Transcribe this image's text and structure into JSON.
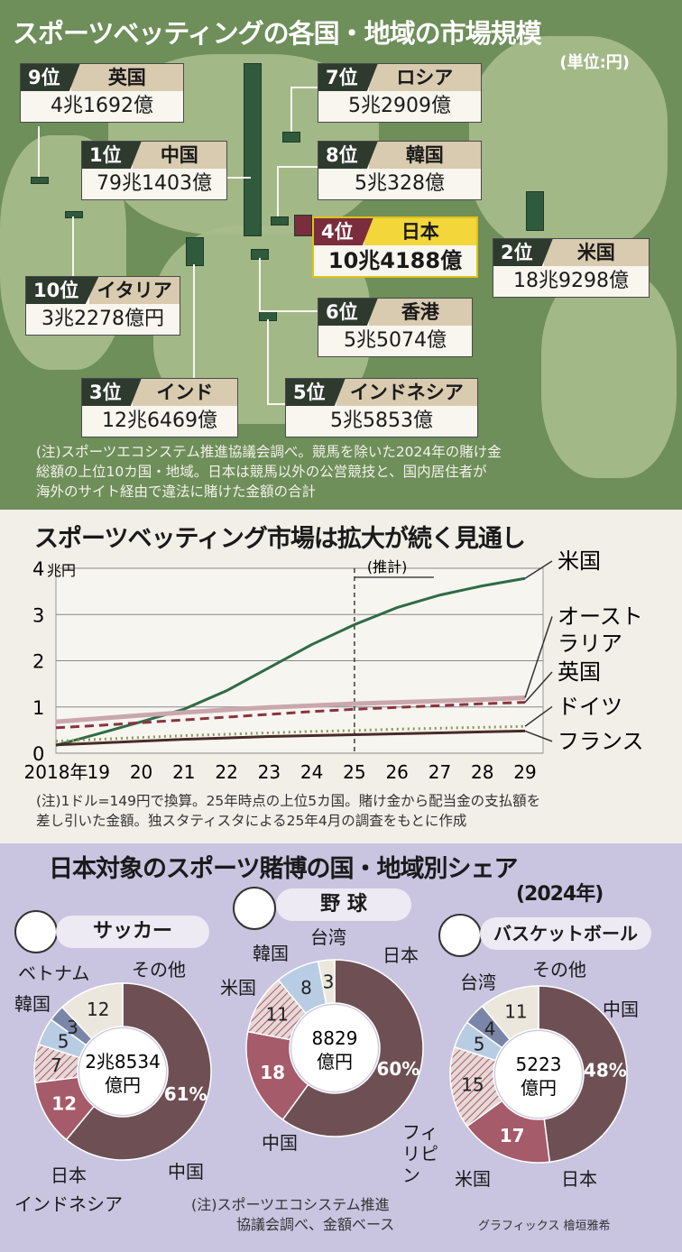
{
  "map": {
    "title": "スポーツベッティングの各国・地域の市場規模",
    "unit": "(単位:円)",
    "entries": [
      {
        "rank": "9位",
        "country": "英国",
        "value": "4兆1692億"
      },
      {
        "rank": "7位",
        "country": "ロシア",
        "value": "5兆2909億"
      },
      {
        "rank": "1位",
        "country": "中国",
        "value": "79兆1403億"
      },
      {
        "rank": "8位",
        "country": "韓国",
        "value": "5兆328億"
      },
      {
        "rank": "4位",
        "country": "日本",
        "value": "10兆4188億"
      },
      {
        "rank": "2位",
        "country": "米国",
        "value": "18兆9298億"
      },
      {
        "rank": "10位",
        "country": "イタリア",
        "value": "3兆2278億円"
      },
      {
        "rank": "6位",
        "country": "香港",
        "value": "5兆5074億"
      },
      {
        "rank": "3位",
        "country": "インド",
        "value": "12兆6469億"
      },
      {
        "rank": "5位",
        "country": "インドネシア",
        "value": "5兆5853億"
      }
    ],
    "note_lines": [
      "(注)スポーツエコシステム推進協議会調べ。競馬を除いた2024年の賭け金",
      "総額の上位10カ国・地域。日本は競馬以外の公営競技と、国内居住者が",
      "海外のサイト経由で違法に賭けた金額の合計"
    ]
  },
  "line": {
    "title": "スポーツベッティング市場は拡大が続く見通し",
    "note_lines": [
      "(注)1ドル=149円で換算。25年時点の上位5カ国。賭け金から配当金の支払額を",
      "差し引いた金額。独スタティスタによる25年4月の調査をもとに作成"
    ]
  },
  "donut": {
    "title": "日本対象のスポーツ賭博の国・地域別シェア",
    "year": "(2024年)",
    "note_lines": [
      "(注)スポーツエコシステム推進",
      "協議会調べ、金額ベース"
    ],
    "credit": "グラフィックス 檜垣雅希"
  },
  "chart_data": [
    {
      "type": "line",
      "title": "スポーツベッティング市場は拡大が続く見通し",
      "ylabel": "兆円",
      "ylim": [
        0,
        4
      ],
      "yticks": [
        "0",
        "1",
        "2",
        "3",
        "4"
      ],
      "x": [
        "2018年",
        "19",
        "20",
        "21",
        "22",
        "23",
        "24",
        "25",
        "26",
        "27",
        "28",
        "29"
      ],
      "annotation": "(推計)",
      "forecast_from": "25",
      "grid": true,
      "series": [
        {
          "name": "米国",
          "color": "#2f6b45",
          "style": "solid",
          "values": [
            0.17,
            0.42,
            0.68,
            0.95,
            1.35,
            1.85,
            2.35,
            2.78,
            3.15,
            3.42,
            3.62,
            3.78
          ]
        },
        {
          "name": "オーストラリア",
          "color": "#c9a7ad",
          "style": "solid",
          "values": [
            0.68,
            0.75,
            0.82,
            0.88,
            0.94,
            0.99,
            1.03,
            1.07,
            1.1,
            1.13,
            1.16,
            1.2
          ]
        },
        {
          "name": "英国",
          "color": "#8a3340",
          "style": "dashed",
          "values": [
            0.55,
            0.6,
            0.66,
            0.72,
            0.78,
            0.84,
            0.9,
            0.95,
            0.99,
            1.03,
            1.07,
            1.1
          ]
        },
        {
          "name": "ドイツ",
          "color": "#8a9a56",
          "style": "dotted",
          "values": [
            0.26,
            0.3,
            0.34,
            0.38,
            0.41,
            0.44,
            0.47,
            0.49,
            0.52,
            0.54,
            0.56,
            0.58
          ]
        },
        {
          "name": "フランス",
          "color": "#4a2a2a",
          "style": "solid",
          "values": [
            0.18,
            0.22,
            0.26,
            0.3,
            0.33,
            0.36,
            0.38,
            0.4,
            0.42,
            0.44,
            0.46,
            0.48
          ]
        }
      ]
    },
    {
      "type": "pie",
      "title": "サッカー",
      "center": [
        "2兆8534",
        "億円"
      ],
      "slices": [
        {
          "label": "中国",
          "value": 61,
          "text": "61%",
          "color": "#6e5054"
        },
        {
          "label": "日本",
          "value": 12,
          "text": "12",
          "color": "#a55b69"
        },
        {
          "label": "インドネシア",
          "value": 7,
          "text": "7",
          "color": "#d9c6c4",
          "hatch": true
        },
        {
          "label": "韓国",
          "value": 5,
          "text": "5",
          "color": "#b8cce4"
        },
        {
          "label": "ベトナム",
          "value": 3,
          "text": "3",
          "color": "#7a86a8"
        },
        {
          "label": "その他",
          "value": 12,
          "text": "12",
          "color": "#ece7dc"
        }
      ]
    },
    {
      "type": "pie",
      "title": "野 球",
      "center": [
        "8829",
        "億円"
      ],
      "slices": [
        {
          "label": "日本",
          "value": 60,
          "text": "60%",
          "color": "#6e5054"
        },
        {
          "label": "中国",
          "value": 18,
          "text": "18",
          "color": "#a55b69"
        },
        {
          "label": "米国",
          "value": 11,
          "text": "11",
          "color": "#d9c6c4",
          "hatch": true
        },
        {
          "label": "韓国",
          "value": 8,
          "text": "8",
          "color": "#b8cce4"
        },
        {
          "label": "台湾",
          "value": 3,
          "text": "3",
          "color": "#ece7dc"
        }
      ]
    },
    {
      "type": "pie",
      "title": "バスケットボール",
      "center": [
        "5223",
        "億円"
      ],
      "slices": [
        {
          "label": "中国",
          "value": 48,
          "text": "48%",
          "color": "#6e5054"
        },
        {
          "label": "日本",
          "value": 17,
          "text": "17",
          "color": "#a55b69"
        },
        {
          "label": "米国",
          "value": 15,
          "text": "15",
          "color": "#d9c6c4",
          "hatch": true
        },
        {
          "label": "フィリピン",
          "value": 5,
          "text": "5",
          "color": "#b8cce4"
        },
        {
          "label": "台湾",
          "value": 4,
          "text": "4",
          "color": "#7a86a8"
        },
        {
          "label": "その他",
          "value": 11,
          "text": "11",
          "color": "#ece7dc"
        }
      ]
    }
  ]
}
